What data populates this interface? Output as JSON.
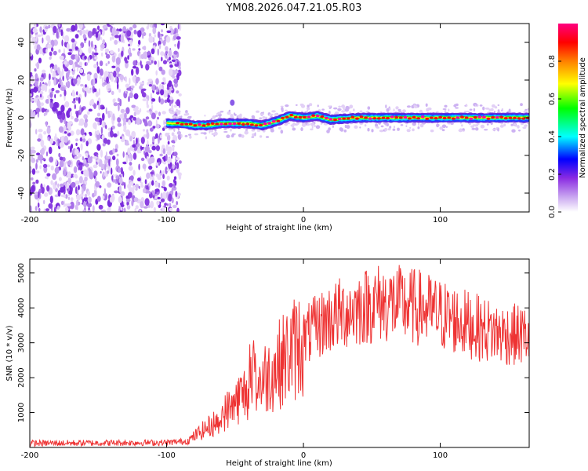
{
  "title": "YM08.2026.047.21.05.R03",
  "chart_data": [
    {
      "type": "heatmap",
      "xlabel": "Height of straight line (km)",
      "ylabel": "Frequency (Hz)",
      "xlim": [
        -200,
        165
      ],
      "ylim": [
        -50,
        50
      ],
      "x_ticks": [
        -200,
        -100,
        0,
        100
      ],
      "y_ticks": [
        -40,
        -20,
        0,
        20,
        40
      ],
      "noise_region_x": [
        -200,
        -90
      ],
      "centroid_line": {
        "x": [
          -100,
          -90,
          -80,
          -70,
          -60,
          -50,
          -40,
          -30,
          -20,
          -10,
          0,
          10,
          20,
          40,
          60,
          80,
          100,
          120,
          140,
          160,
          165
        ],
        "y": [
          -3,
          -3,
          -4,
          -4,
          -3,
          -3,
          -3,
          -4,
          -2,
          1,
          0,
          1,
          -1,
          0,
          0,
          0,
          0,
          0,
          0,
          0,
          0
        ]
      },
      "spot_near": {
        "x": -52,
        "y": 8
      },
      "colorbar": {
        "label": "Normalized spectral amplitude",
        "range": [
          0,
          1
        ],
        "ticks": [
          "0.0",
          "0.2",
          "0.4",
          "0.6",
          "0.8"
        ],
        "tick_values": [
          0.0,
          0.2,
          0.4,
          0.6,
          0.8
        ],
        "colors": [
          "#ffffff",
          "#8a2be2",
          "#0000ff",
          "#00ffff",
          "#00ff00",
          "#ffff00",
          "#ff8000",
          "#ff0000",
          "#ff0080"
        ]
      }
    },
    {
      "type": "line",
      "xlabel": "Height of straight line (km)",
      "ylabel": "SNR (10 * v/v)",
      "xlim": [
        -200,
        165
      ],
      "ylim": [
        0,
        5400
      ],
      "x_ticks": [
        -200,
        -100,
        0,
        100
      ],
      "y_ticks": [
        1000,
        2000,
        3000,
        4000,
        5000
      ],
      "color": "#ee3333",
      "envelope": {
        "x": [
          -200,
          -150,
          -100,
          -85,
          -75,
          -65,
          -55,
          -45,
          -35,
          -25,
          -15,
          -5,
          5,
          15,
          25,
          40,
          55,
          70,
          85,
          100,
          115,
          130,
          145,
          165
        ],
        "y": [
          120,
          130,
          140,
          180,
          450,
          700,
          1100,
          1500,
          1800,
          2100,
          2500,
          2900,
          3300,
          3600,
          3800,
          4000,
          4150,
          4100,
          4000,
          3800,
          3600,
          3400,
          3250,
          3200
        ]
      }
    }
  ]
}
